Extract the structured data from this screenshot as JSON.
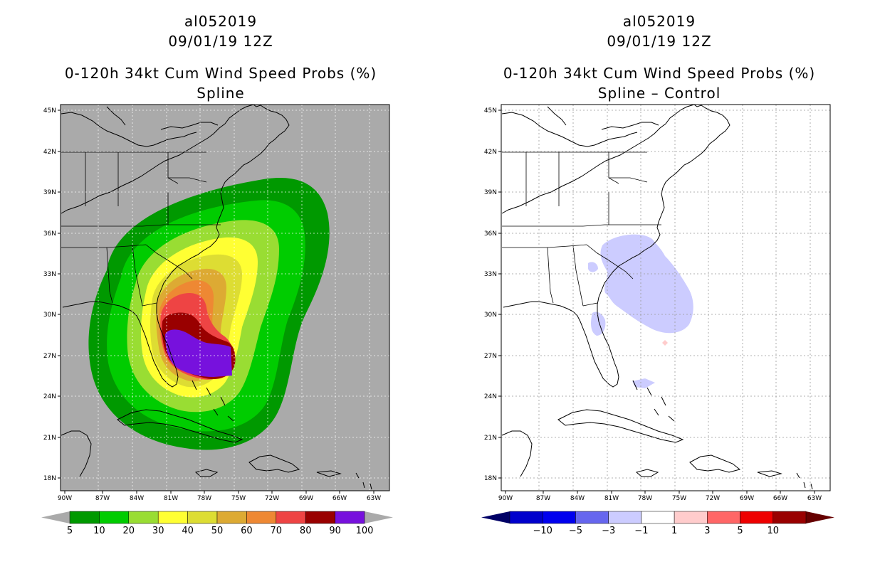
{
  "left": {
    "storm_id": "al052019",
    "datetime": "09/01/19 12Z",
    "product": "0-120h 34kt Cum Wind Speed Probs (%)",
    "subtitle": "Spline",
    "background": "#aaaaaa",
    "colorbar": {
      "colors": [
        "#009900",
        "#00cc00",
        "#99dd33",
        "#ffff33",
        "#dddd33",
        "#ddaa33",
        "#ee8833",
        "#ee4444",
        "#990000",
        "#7711dd"
      ],
      "labels": [
        "5",
        "10",
        "20",
        "30",
        "40",
        "50",
        "60",
        "70",
        "80",
        "90",
        "100"
      ]
    }
  },
  "right": {
    "storm_id": "al052019",
    "datetime": "09/01/19 12Z",
    "product": "0-120h 34kt Cum Wind Speed Probs (%)",
    "subtitle": "Spline – Control",
    "background": "#ffffff",
    "colorbar": {
      "colors": [
        "#0000cc",
        "#0000ee",
        "#6666ee",
        "#ccccff",
        "#ffffff",
        "#ffcccc",
        "#ff6666",
        "#ee0000",
        "#990000"
      ],
      "labels": [
        "−10",
        "−5",
        "−3",
        "−1",
        "1",
        "3",
        "5",
        "10"
      ]
    }
  },
  "axes": {
    "lat_labels": [
      "45N",
      "42N",
      "39N",
      "36N",
      "33N",
      "30N",
      "27N",
      "24N",
      "21N",
      "18N"
    ],
    "lon_labels": [
      "90W",
      "87W",
      "84W",
      "81W",
      "78W",
      "75W",
      "72W",
      "69W",
      "66W",
      "63W"
    ]
  }
}
